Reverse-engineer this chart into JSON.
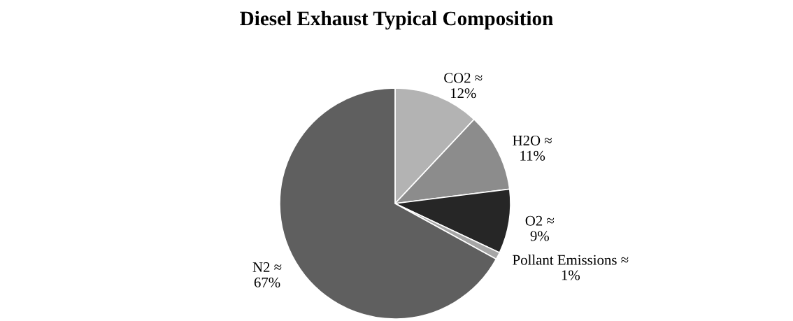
{
  "chart_data": {
    "type": "pie",
    "title": "Diesel Exhaust Typical Composition",
    "categories": [
      "CO2 ≈",
      "H2O ≈",
      "O2 ≈",
      "Pollant Emissions ≈",
      "N2 ≈"
    ],
    "values": [
      12,
      11,
      9,
      1,
      67
    ],
    "value_labels": [
      "12%",
      "11%",
      "9%",
      "1%",
      "67%"
    ],
    "colors": [
      "#b3b3b3",
      "#8c8c8c",
      "#262626",
      "#a6a6a6",
      "#5f5f5f"
    ],
    "legend": false
  }
}
